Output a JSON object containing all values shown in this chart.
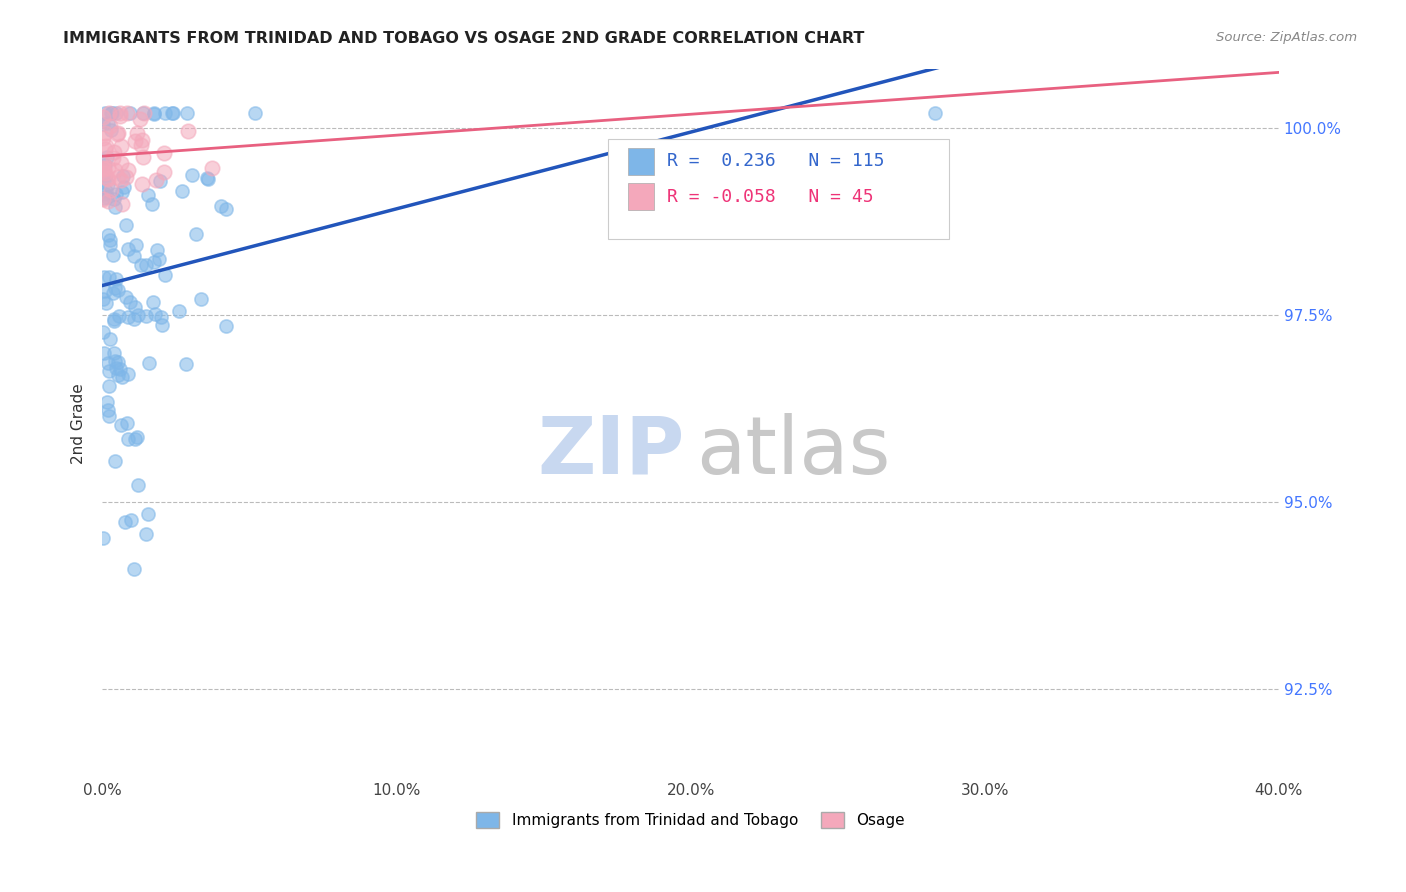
{
  "title": "IMMIGRANTS FROM TRINIDAD AND TOBAGO VS OSAGE 2ND GRADE CORRELATION CHART",
  "source": "Source: ZipAtlas.com",
  "ylabel": "2nd Grade",
  "ytick_labels": [
    "92.5%",
    "95.0%",
    "97.5%",
    "100.0%"
  ],
  "ytick_values": [
    0.925,
    0.95,
    0.975,
    1.0
  ],
  "xlim": [
    0.0,
    0.4
  ],
  "ylim": [
    0.913,
    1.008
  ],
  "legend_label1": "Immigrants from Trinidad and Tobago",
  "legend_label2": "Osage",
  "R1": 0.236,
  "N1": 115,
  "R2": -0.058,
  "N2": 45,
  "blue_color": "#7EB6E8",
  "pink_color": "#F4A8BB",
  "blue_line_color": "#2255BB",
  "pink_line_color": "#E86080",
  "watermark_zip_color": "#C8D8F0",
  "watermark_atlas_color": "#C8C8C8",
  "blue_seed": 42,
  "pink_seed": 99
}
